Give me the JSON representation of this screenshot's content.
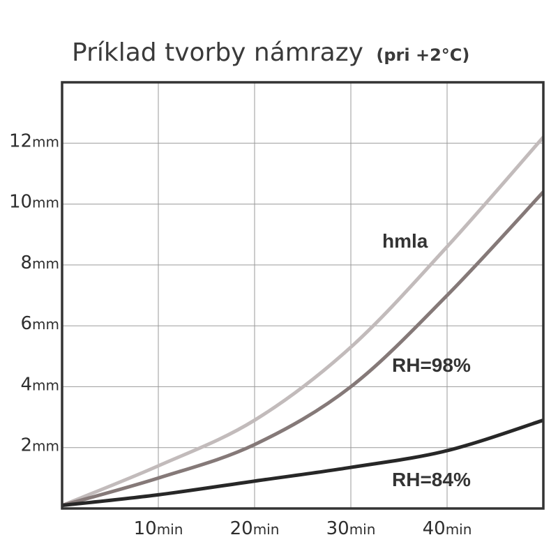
{
  "chart_data": {
    "type": "line",
    "title": "Príklad tvorby námrazy",
    "subtitle": "(pri +2°C)",
    "xlabel": "",
    "ylabel": "",
    "xlim": [
      0,
      50
    ],
    "ylim": [
      0,
      14
    ],
    "grid": true,
    "x_ticks": [
      {
        "value": 10,
        "num": "10",
        "unit": "min"
      },
      {
        "value": 20,
        "num": "20",
        "unit": "min"
      },
      {
        "value": 30,
        "num": "30",
        "unit": "min"
      },
      {
        "value": 40,
        "num": "40",
        "unit": "min"
      }
    ],
    "y_ticks": [
      {
        "value": 2,
        "num": "2",
        "unit": "mm"
      },
      {
        "value": 4,
        "num": "4",
        "unit": "mm"
      },
      {
        "value": 6,
        "num": "6",
        "unit": "mm"
      },
      {
        "value": 8,
        "num": "8",
        "unit": "mm"
      },
      {
        "value": 10,
        "num": "10",
        "unit": "mm"
      },
      {
        "value": 12,
        "num": "12",
        "unit": "mm"
      }
    ],
    "x_gridlines": [
      10,
      20,
      30,
      40
    ],
    "y_gridlines": [
      2,
      4,
      6,
      8,
      10,
      12
    ],
    "series": [
      {
        "name": "hmla",
        "color": "#c2bbbb",
        "points": [
          [
            0,
            0.1
          ],
          [
            10,
            1.4
          ],
          [
            20,
            2.9
          ],
          [
            30,
            5.3
          ],
          [
            40,
            8.6
          ],
          [
            50,
            12.2
          ]
        ]
      },
      {
        "name": "RH=98%",
        "color": "#857978",
        "points": [
          [
            0,
            0.1
          ],
          [
            10,
            1.0
          ],
          [
            20,
            2.1
          ],
          [
            30,
            4.0
          ],
          [
            40,
            7.0
          ],
          [
            50,
            10.4
          ]
        ]
      },
      {
        "name": "RH=84%",
        "color": "#272727",
        "points": [
          [
            0,
            0.1
          ],
          [
            10,
            0.45
          ],
          [
            20,
            0.9
          ],
          [
            30,
            1.35
          ],
          [
            40,
            1.9
          ],
          [
            50,
            2.9
          ]
        ]
      }
    ]
  }
}
